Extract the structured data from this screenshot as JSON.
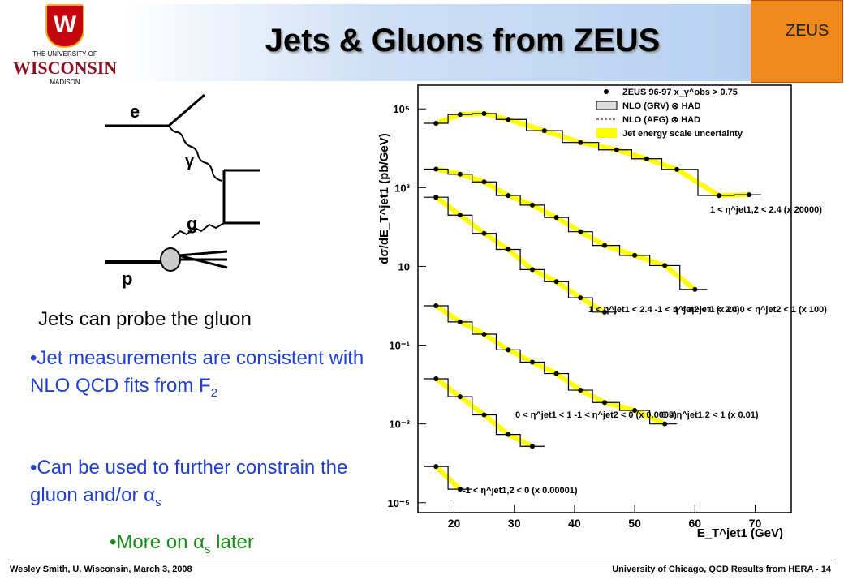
{
  "header": {
    "title": "Jets & Gluons from ZEUS",
    "university_logo": [
      "THE UNIVERSITY OF",
      "WISCONSIN",
      "MADISON"
    ],
    "experiment_logo": "ZEUS"
  },
  "diagram": {
    "labels": [
      "e",
      "γ",
      "g",
      "p"
    ]
  },
  "body": {
    "lead": "Jets can probe the gluon",
    "bullets": [
      {
        "text": "Jet measurements are consistent with NLO QCD fits from F",
        "sub": "2"
      },
      {
        "text": "Can be used to further constrain the gluon and/or ",
        "symbol": "α",
        "sub": "s"
      }
    ],
    "more": {
      "text": "More on ",
      "symbol": "α",
      "sub": "s",
      "tail": " later"
    }
  },
  "footer": {
    "left": "Wesley Smith, U. Wisconsin, March 3, 2008",
    "right": "University of Chicago, QCD Results from HERA -  14"
  },
  "chart_data": {
    "type": "line",
    "log_y": true,
    "x_label": "E_T^jet1 (GeV)",
    "y_label": "dσ/dE_T^jet1 (pb/GeV)",
    "xlim": [
      14,
      76
    ],
    "xticks": [
      20,
      30,
      40,
      50,
      60,
      70
    ],
    "ylim": [
      5.6e-06,
      400000
    ],
    "yticks": [
      {
        "value": 100000,
        "label": "10⁵"
      },
      {
        "value": 1000,
        "label": "10³"
      },
      10,
      {
        "value": 0.1,
        "label": "10⁻¹"
      },
      {
        "value": 0.001,
        "label": "10⁻³"
      },
      {
        "value": 1e-05,
        "label": "10⁻⁵"
      }
    ],
    "legend": [
      "ZEUS 96-97  x_γ^obs > 0.75",
      "NLO (GRV) ⊗ HAD",
      "NLO (AFG) ⊗ HAD",
      "Jet energy scale uncertainty"
    ],
    "band_color": "#ffff00",
    "series": [
      {
        "name": "1 < η^jet1,2 < 2.4 (x 20000)",
        "x": [
          17,
          21,
          25,
          29,
          35,
          41,
          47,
          52,
          57,
          64,
          69
        ],
        "values": [
          43000,
          72000,
          76000,
          54000,
          28000,
          14000,
          9100,
          5400,
          2900,
          630,
          660
        ]
      },
      {
        "name": "1 < η^jet1 < 2.4  0 < η^jet2 < 1 (x 100)",
        "x": [
          17,
          21,
          25,
          29,
          33,
          37,
          41,
          45,
          50,
          55,
          60
        ],
        "values": [
          2950,
          2200,
          1400,
          630,
          360,
          175,
          76,
          34,
          19,
          10.5,
          2.6
        ]
      },
      {
        "name": "1 < η^jet1 < 2.4  -1 < η^jet2 < 0 (x 20)",
        "x": [
          17,
          21,
          25,
          29,
          33,
          37,
          41,
          45
        ],
        "values": [
          570,
          200,
          69,
          27,
          8.3,
          4.1,
          1.6,
          0.69
        ]
      },
      {
        "name": "0 < η^jet1,2 < 1 (x 0.01)",
        "x": [
          17,
          21,
          25,
          29,
          33,
          37,
          41,
          45,
          50,
          55
        ],
        "values": [
          1.0,
          0.39,
          0.19,
          0.076,
          0.037,
          0.019,
          0.0072,
          0.0035,
          0.0022,
          0.001
        ]
      },
      {
        "name": "0 < η^jet1 < 1  -1 < η^jet2 < 0 (x 0.0005)",
        "x": [
          17,
          21,
          25,
          29,
          33
        ],
        "values": [
          0.014,
          0.0049,
          0.0017,
          0.00054,
          0.00027
        ]
      },
      {
        "name": "-1 < η^jet1,2 < 0 (x 0.00001)",
        "x": [
          17,
          21
        ],
        "values": [
          8.3e-05,
          2.2e-05
        ]
      }
    ]
  }
}
